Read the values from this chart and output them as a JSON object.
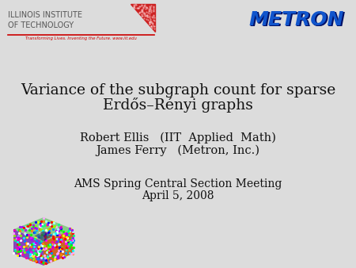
{
  "background_color": "#dcdcdc",
  "title_line1": "Variance of the subgraph count for sparse",
  "title_line2": "Erdős–Rényi graphs",
  "author_line1": "Robert Ellis   (IIT  Applied  Math)",
  "author_line2": "James Ferry   (Metron, Inc.)",
  "event_line1": "AMS Spring Central Section Meeting",
  "event_line2": "April 5, 2008",
  "iit_line1": "ILLINOIS INSTITUTE",
  "iit_line2": "OF TECHNOLOGY",
  "iit_subtext": "Transforming Lives. Inventing the Future. www.iit.edu",
  "metron_text": "METRON",
  "title_fontsize": 13.5,
  "author_fontsize": 10.5,
  "event_fontsize": 10,
  "text_color": "#111111"
}
